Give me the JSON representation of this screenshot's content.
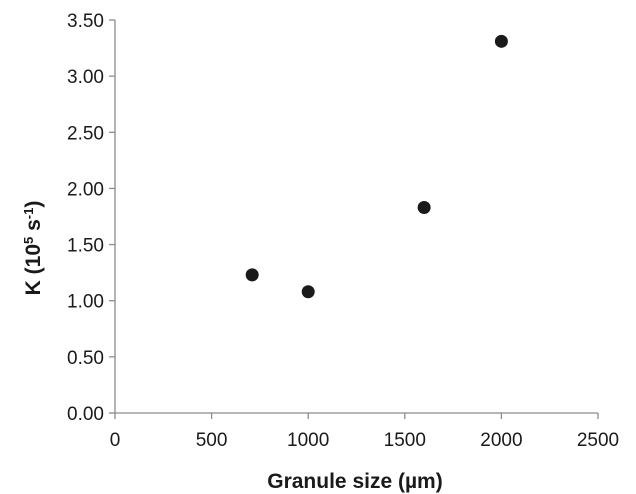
{
  "chart_data": {
    "type": "scatter",
    "title": "",
    "xlabel": "Granule size (µm)",
    "ylabel": {
      "main": "K (10",
      "exp1": "5",
      "mid": " s",
      "exp2": "-1",
      "end": ")"
    },
    "xlim": [
      0,
      2500
    ],
    "ylim": [
      0,
      3.5
    ],
    "x_ticks": [
      "0",
      "500",
      "1000",
      "1500",
      "2000",
      "2500"
    ],
    "y_ticks": [
      "0.00",
      "0.50",
      "1.00",
      "1.50",
      "2.00",
      "2.50",
      "3.00",
      "3.50"
    ],
    "grid": false,
    "legend": "none",
    "series": [
      {
        "points": [
          {
            "x": 710,
            "y": 1.23
          },
          {
            "x": 1000,
            "y": 1.08
          },
          {
            "x": 1600,
            "y": 1.83
          },
          {
            "x": 2000,
            "y": 3.31
          }
        ]
      }
    ],
    "colors": {
      "marker": "#1a1a1a",
      "axis": "#8c8c8c"
    }
  }
}
